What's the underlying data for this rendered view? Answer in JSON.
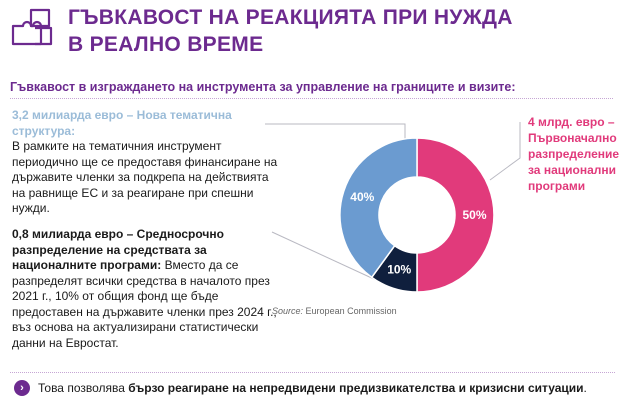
{
  "title": {
    "line1": "ГЪВКАВОСТ НА РЕАКЦИЯТА ПРИ НУЖДА",
    "line2": "В РЕАЛНО ВРЕМЕ"
  },
  "subtitle": "Гъвкавост в изграждането на инструмента за управление на границите и визите:",
  "block_thematic": {
    "heading": "3,2 милиарда евро – Нова тематична структура:",
    "body": "В рамките на тематичния инструмент периодично ще се предоставя финансиране на държавите членки за подкрепа на действията на равнище ЕС и за реагиране при спешни нужди."
  },
  "block_national": {
    "heading": "4 млрд. евро – Първоначално разпределение за национални програми"
  },
  "block_midterm": {
    "heading": "0,8 милиарда евро – Средносрочно разпределение на средствата за националните програми:",
    "body": "Вместо да се разпределят всички средства в началото през 2021 г., 10% от общия фонд ще бъде предоставен на държавите членки през 2024 г., въз основа на актуализирани статистически данни на Евростат."
  },
  "source": {
    "label": "Source:",
    "text": "European Commission"
  },
  "footer": {
    "prefix": "Това позволява ",
    "bold": "бързо реагиране на непредвидени предизвикателства и кризисни ситуации",
    "suffix": "."
  },
  "icons": {
    "logo": "puzzle-icon",
    "bullet": "chevron-right-icon"
  },
  "colors": {
    "purple": "#6c2a8f",
    "pink": "#e13a7b",
    "blue": "#6b9bd0",
    "navy": "#0f1f3d",
    "grey_blue": "#9bbcd8"
  },
  "chart_data": {
    "type": "pie",
    "donut": true,
    "labels": [
      "50%",
      "10%",
      "40%"
    ],
    "values": [
      50,
      10,
      40
    ],
    "colors": [
      "#e13a7b",
      "#0f1f3d",
      "#6b9bd0"
    ]
  }
}
